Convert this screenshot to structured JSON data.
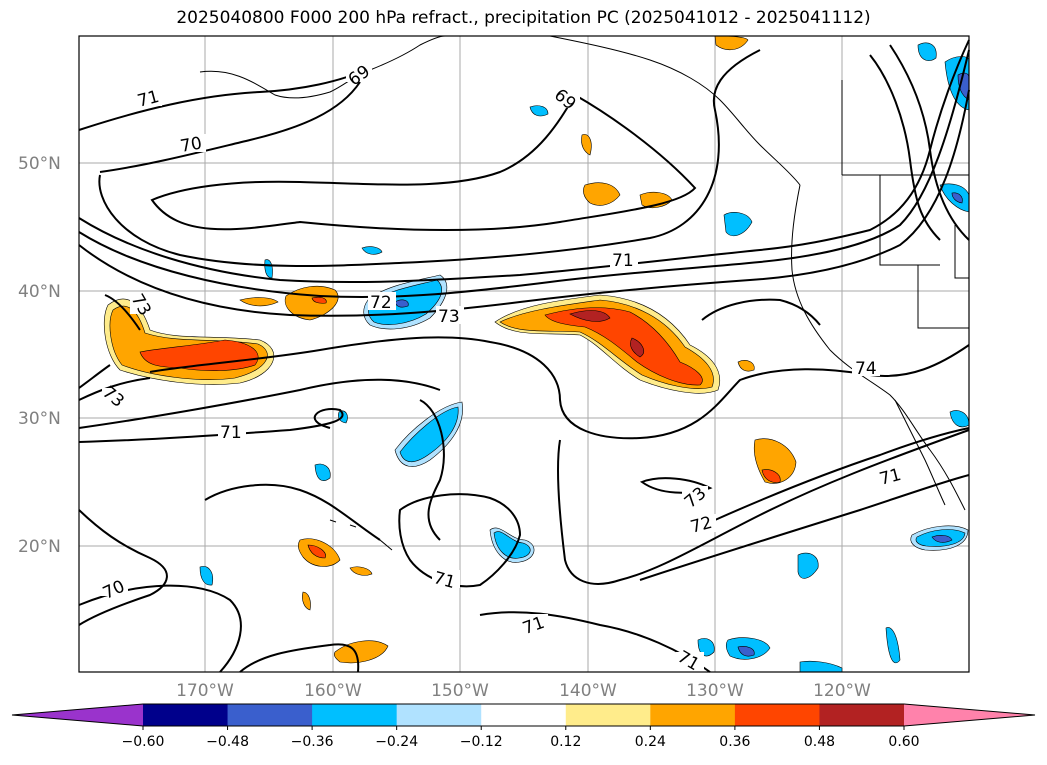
{
  "title": "2025040800 F000 200 hPa refract., precipitation PC (2025041012 - 2025041112)",
  "latitude_labels": [
    "50°N",
    "40°N",
    "30°N",
    "20°N"
  ],
  "longitude_labels": [
    "170°W",
    "160°W",
    "150°W",
    "140°W",
    "130°W",
    "120°W"
  ],
  "contour_labels": [
    "71",
    "70",
    "69",
    "69",
    "71",
    "72",
    "73",
    "73",
    "73",
    "71",
    "74",
    "71",
    "73",
    "72",
    "71",
    "71",
    "70",
    "71"
  ],
  "colorbar": {
    "ticks": [
      "−0.60",
      "−0.48",
      "−0.36",
      "−0.24",
      "−0.12",
      "0.12",
      "0.24",
      "0.36",
      "0.48",
      "0.60"
    ],
    "colors": [
      "#9a33cc",
      "#00008b",
      "#3a5fcd",
      "#00bfff",
      "#b0e2ff",
      "#ffffff",
      "#ffec8b",
      "#ffa500",
      "#ff4500",
      "#b22222",
      "#ff82ab"
    ]
  },
  "palette": {
    "neg_strong": "#3a5fcd",
    "neg_mid": "#00bfff",
    "neg_light": "#b0e2ff",
    "pos_light": "#ffec8b",
    "pos_mid": "#ffa500",
    "pos_strong": "#ff4500",
    "pos_max": "#b22222"
  }
}
